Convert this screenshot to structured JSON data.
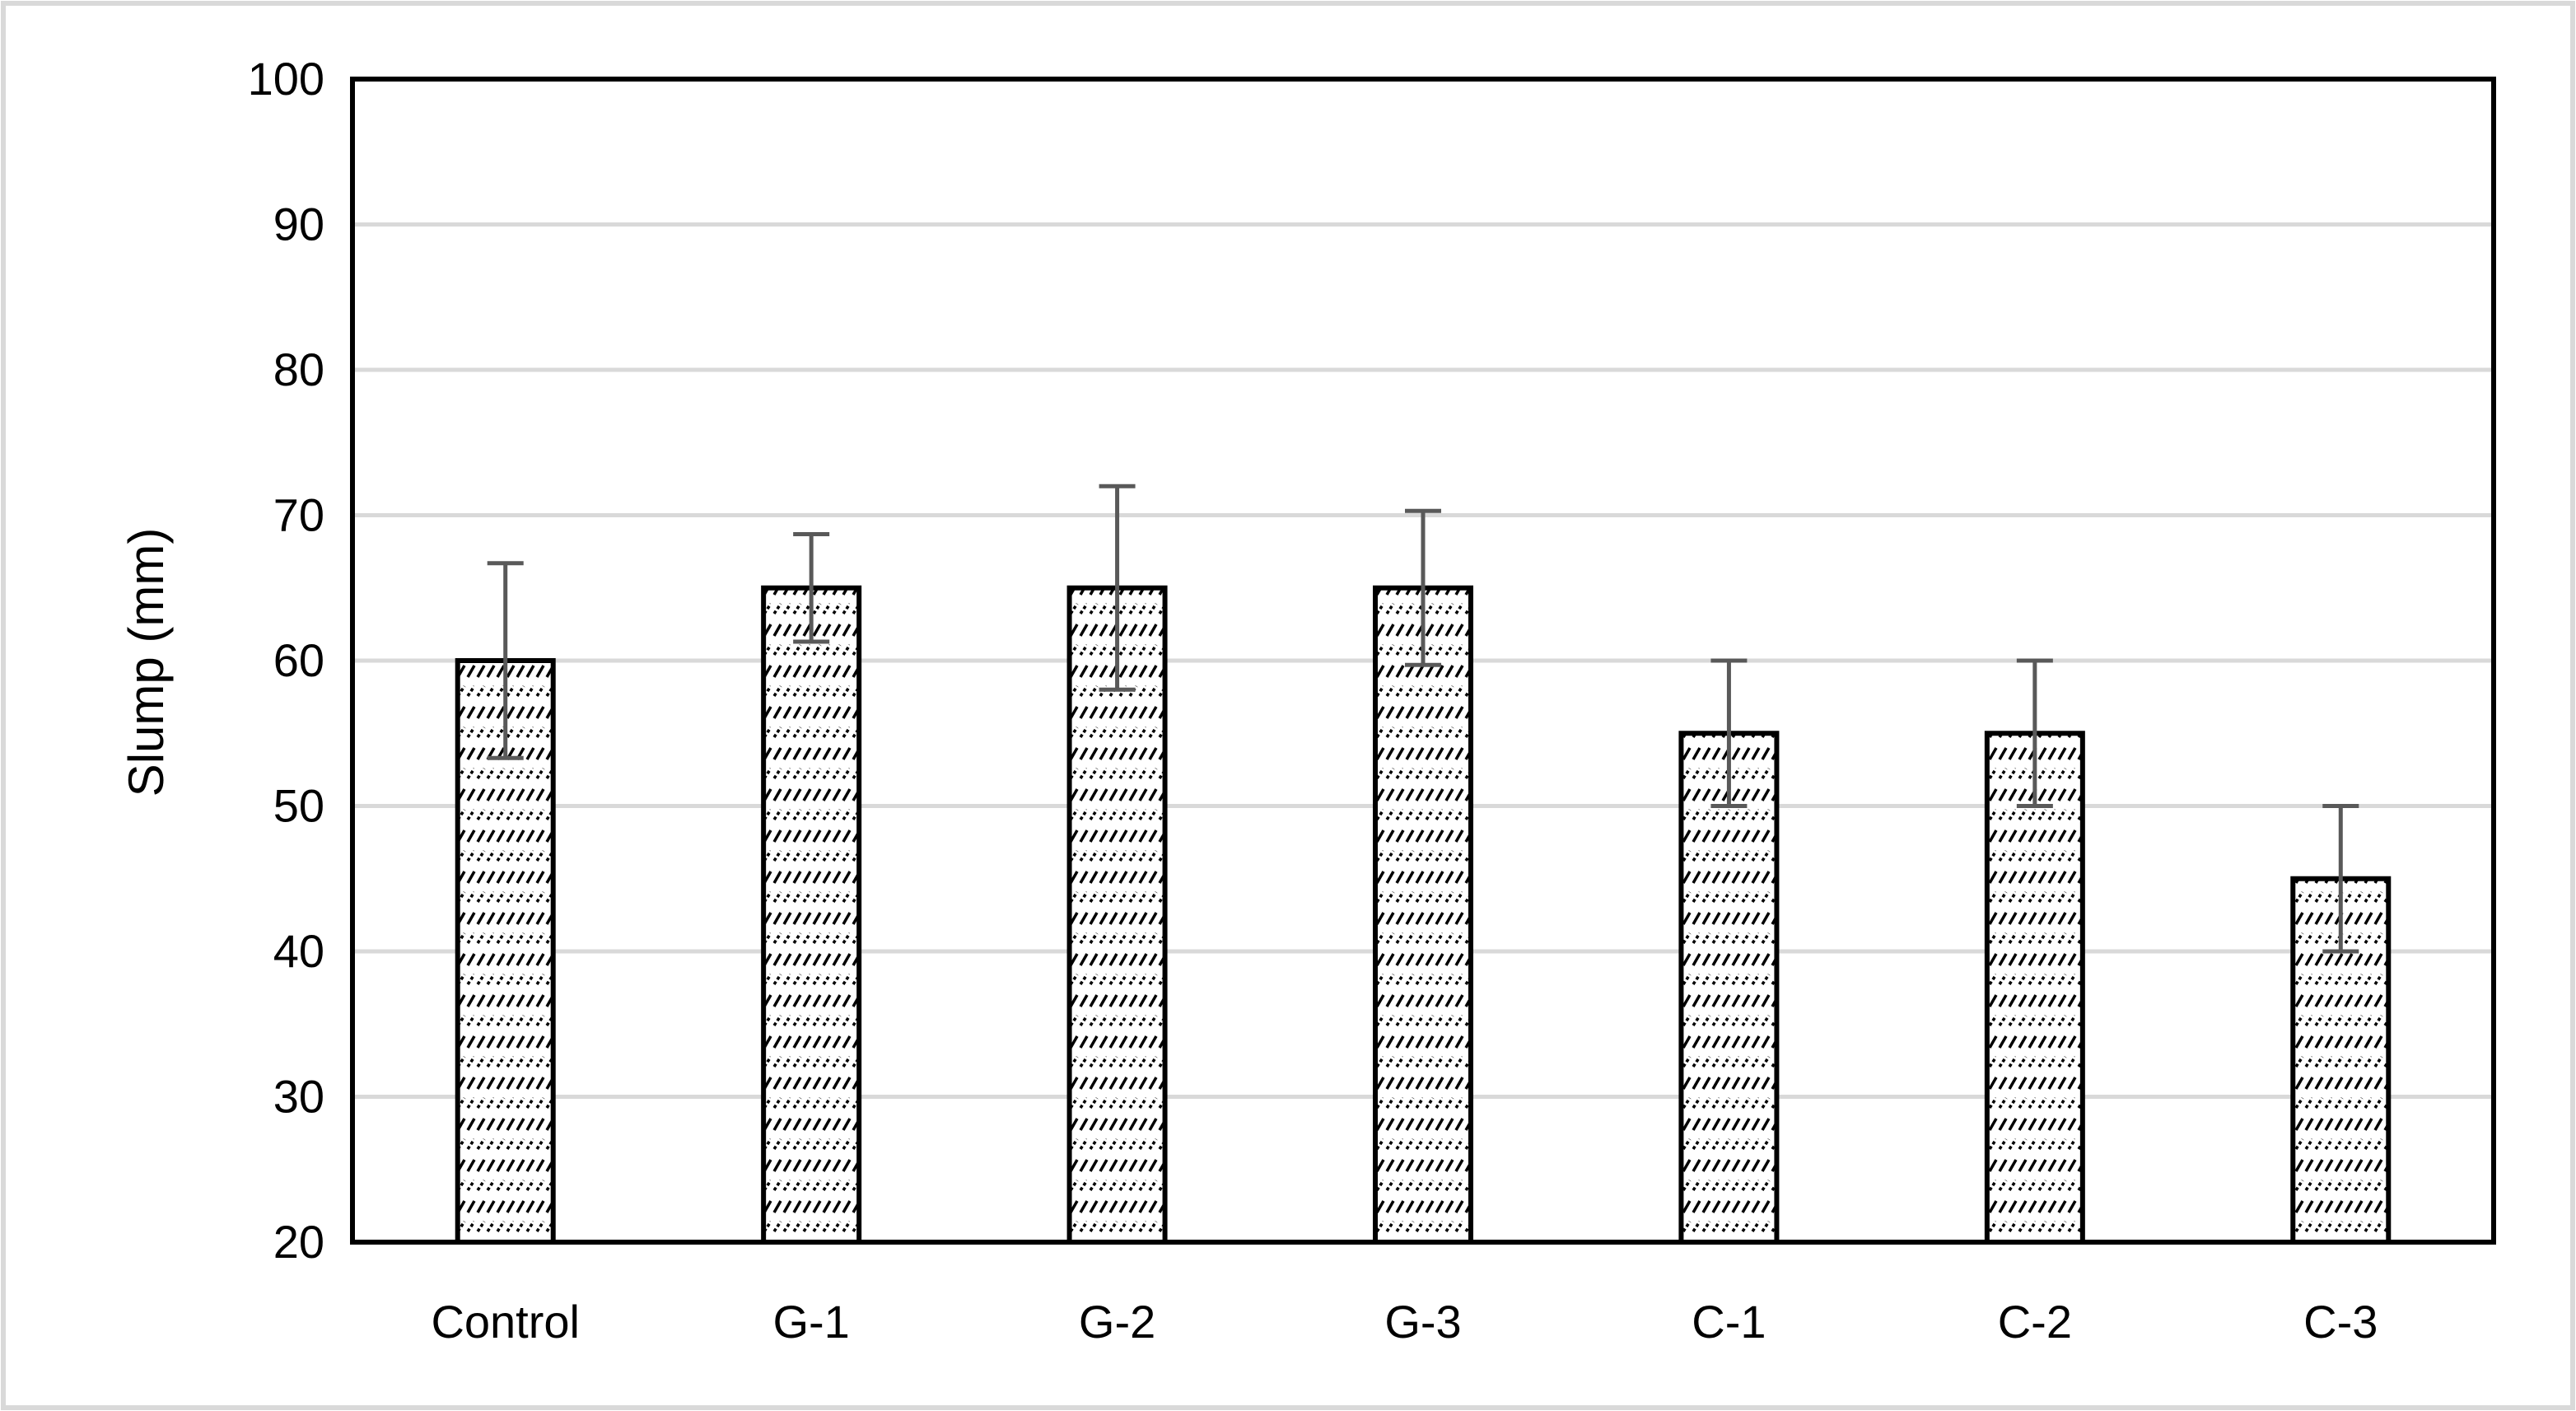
{
  "chart_data": {
    "type": "bar",
    "title": "",
    "xlabel": "",
    "ylabel": "Slump (mm)",
    "ylim": [
      20,
      100
    ],
    "yticks": [
      20,
      30,
      40,
      50,
      60,
      70,
      80,
      90,
      100
    ],
    "grid": true,
    "legend": "none",
    "categories": [
      "Control",
      "G-1",
      "G-2",
      "G-3",
      "C-1",
      "C-2",
      "C-3"
    ],
    "series": [
      {
        "values": [
          60,
          65,
          65,
          65,
          55,
          55,
          45
        ],
        "error_low": [
          53.3,
          61.3,
          58,
          59.7,
          50,
          50,
          40
        ],
        "error_high": [
          66.7,
          68.7,
          72,
          70.3,
          60,
          60,
          50
        ]
      }
    ],
    "colors": {
      "bar_fill": "#ffffff",
      "bar_hatch": "#000000",
      "bar_edge": "#000000",
      "error_bar": "#595959",
      "grid": "#d9d9d9",
      "plot_frame": "#000000",
      "outer_border": "#d9d9d9"
    }
  }
}
